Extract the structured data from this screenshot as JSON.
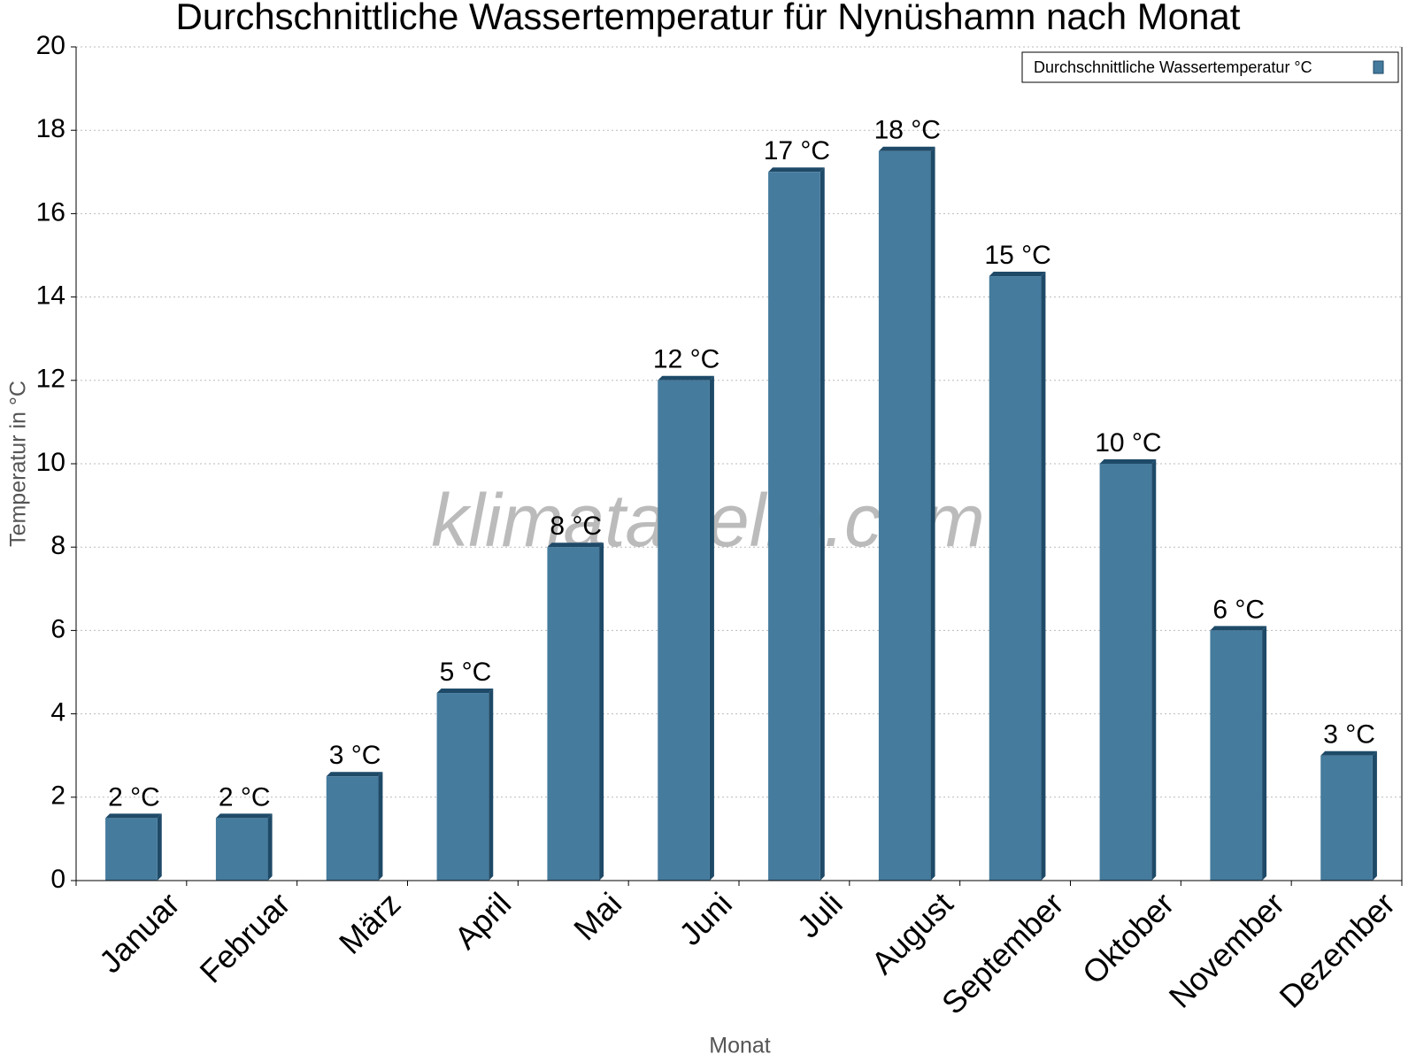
{
  "chart_data": {
    "type": "bar",
    "title": "Durchschnittliche Wassertemperatur für Nynüshamn nach Monat",
    "x_label": "Monat",
    "y_label": "Temperatur in °C",
    "watermark": "klimatabelle.com",
    "categories": [
      "Januar",
      "Februar",
      "März",
      "April",
      "Mai",
      "Juni",
      "Juli",
      "August",
      "September",
      "Oktober",
      "November",
      "Dezember"
    ],
    "series": [
      {
        "name": "Durchschnittliche Wassertemperatur °C",
        "color": "#457b9d",
        "values": [
          1.5,
          1.5,
          2.5,
          4.5,
          8,
          12,
          17,
          17.5,
          14.5,
          10,
          6,
          3
        ],
        "value_labels": [
          "2 °C",
          "2 °C",
          "3 °C",
          "5 °C",
          "8 °C",
          "12 °C",
          "17 °C",
          "18 °C",
          "15 °C",
          "10 °C",
          "6 °C",
          "3 °C"
        ]
      }
    ],
    "ylim": [
      0,
      20
    ],
    "yticks": [
      0,
      2,
      4,
      6,
      8,
      10,
      12,
      14,
      16,
      18,
      20
    ],
    "grid": true,
    "legend": "top-right"
  }
}
